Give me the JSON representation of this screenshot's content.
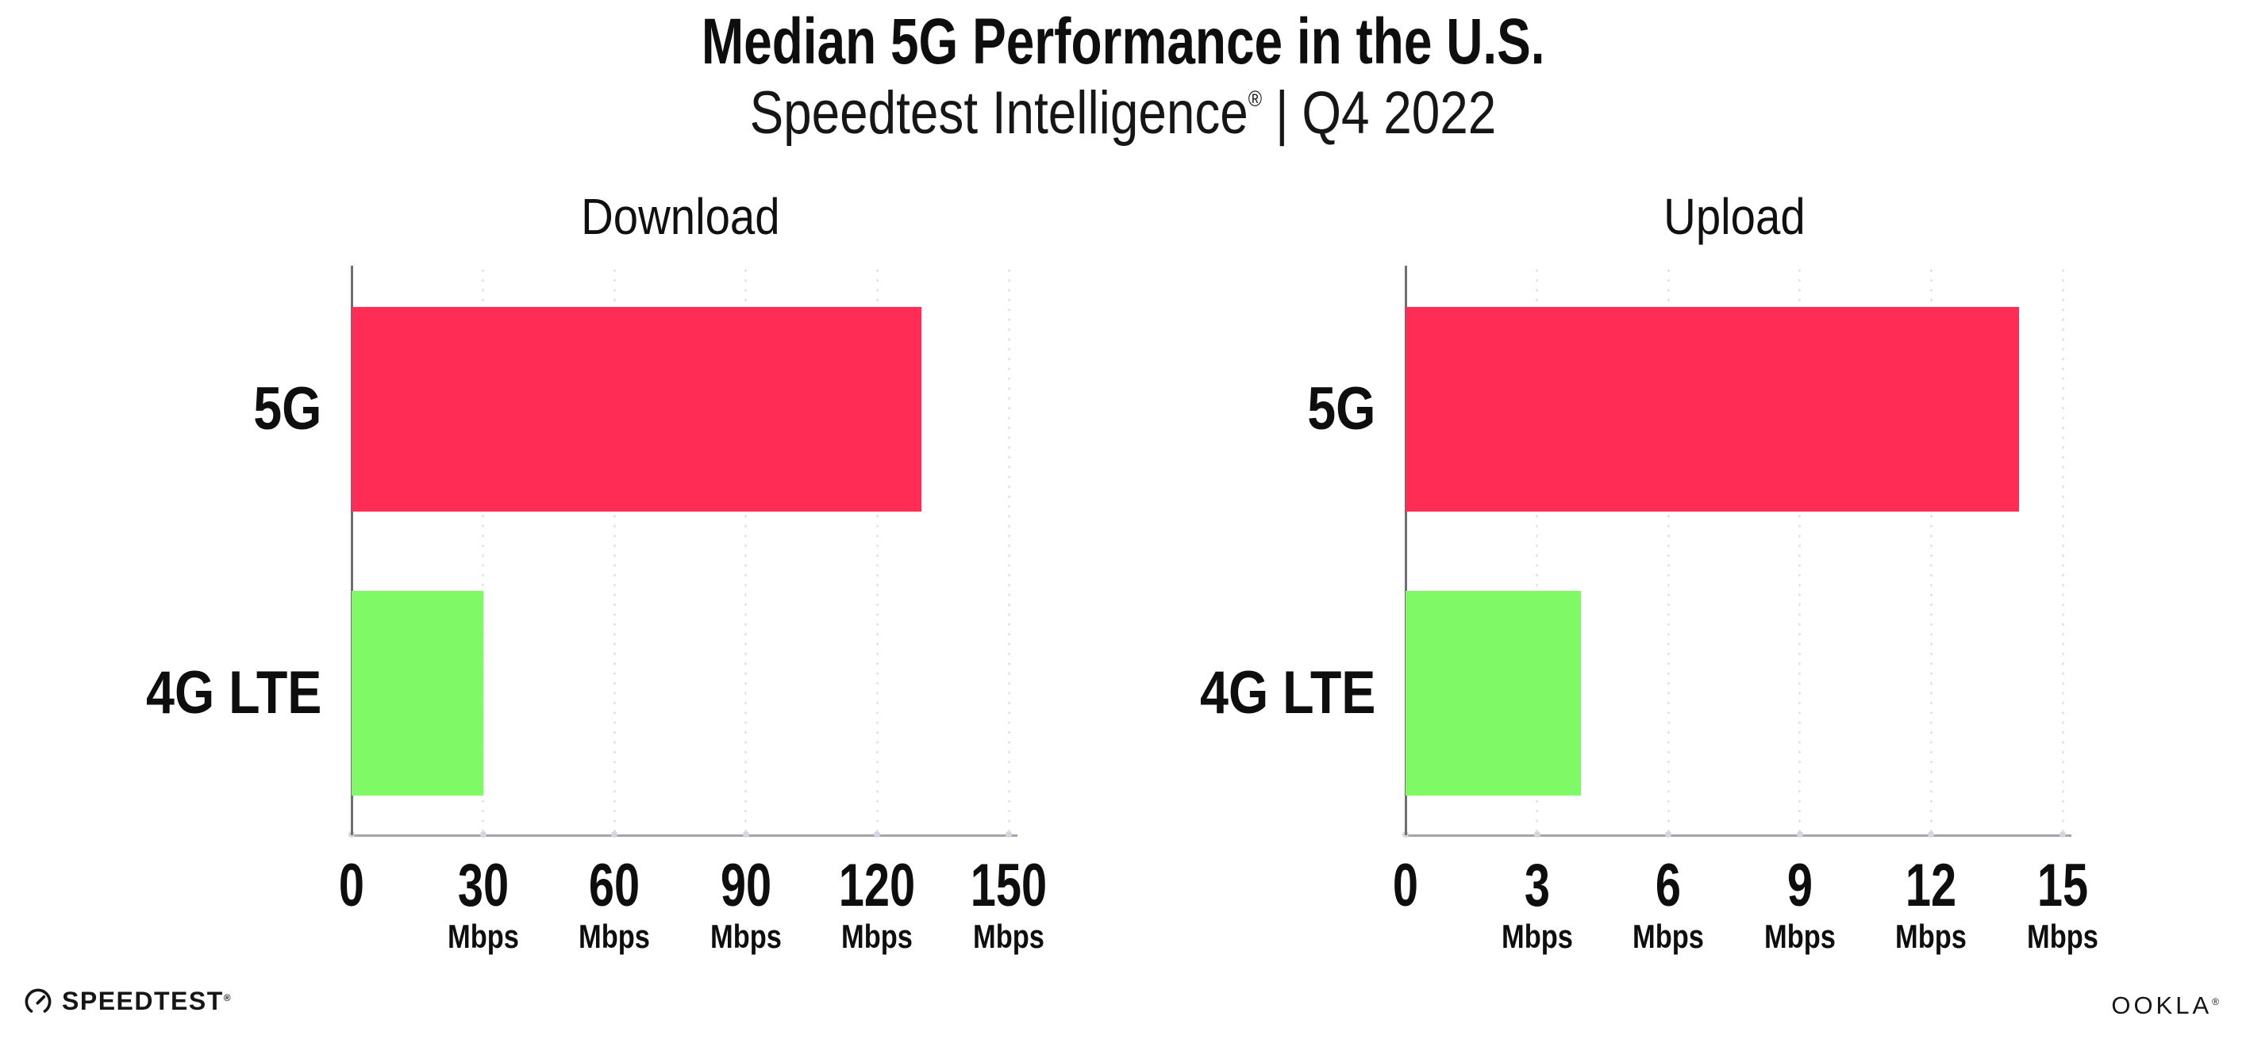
{
  "header": {
    "title": "Median 5G Performance in the U.S.",
    "subtitle": {
      "brand": "Speedtest Intelligence",
      "registered_mark": "®",
      "separator": "|",
      "period": "Q4 2022"
    }
  },
  "chart_data": [
    {
      "type": "bar",
      "orientation": "horizontal",
      "title": "Download",
      "categories": [
        "5G",
        "4G LTE"
      ],
      "values": [
        130,
        30
      ],
      "unit": "Mbps",
      "xlabel": "",
      "ylabel": "",
      "xlim": [
        0,
        150
      ],
      "xticks": [
        0,
        30,
        60,
        90,
        120,
        150
      ],
      "tick_unit_label": "Mbps",
      "grid": "vertical-dotted",
      "legend": "none",
      "bar_colors": [
        "#FF2D55",
        "#80F966"
      ]
    },
    {
      "type": "bar",
      "orientation": "horizontal",
      "title": "Upload",
      "categories": [
        "5G",
        "4G LTE"
      ],
      "values": [
        14,
        4
      ],
      "unit": "Mbps",
      "xlabel": "",
      "ylabel": "",
      "xlim": [
        0,
        15
      ],
      "xticks": [
        0,
        3,
        6,
        9,
        12,
        15
      ],
      "tick_unit_label": "Mbps",
      "grid": "vertical-dotted",
      "legend": "none",
      "bar_colors": [
        "#FF2D55",
        "#80F966"
      ]
    }
  ],
  "footer": {
    "speedtest_wordmark": "SPEEDTEST",
    "speedtest_registered_mark": "®",
    "ookla_wordmark": "OOKLA",
    "ookla_registered_mark": "®"
  },
  "colors": {
    "background": "#FFFFFF",
    "bar_5g": "#FF2D55",
    "bar_4g_lte": "#80F966",
    "text": "#0E0E0E",
    "grid_dot": "#E0E0E9",
    "x_axis": "#A6A6A9",
    "y_axis": "#6E6E73",
    "axis_tick_dot": "#D6D6E0"
  }
}
